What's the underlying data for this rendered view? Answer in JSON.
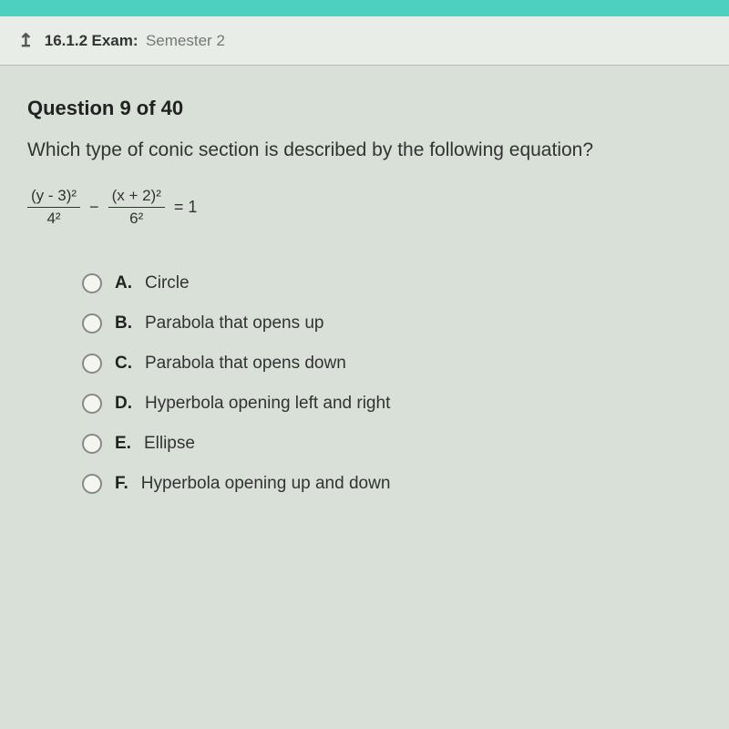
{
  "topbar_color": "#4dd0c0",
  "header": {
    "exam_number": "16.1.2",
    "exam_label": "Exam:",
    "exam_name": "Semester 2"
  },
  "question": {
    "number_label": "Question 9 of 40",
    "text": "Which type of conic section is described by the following equation?",
    "equation": {
      "frac1_num": "(y - 3)²",
      "frac1_den": "4²",
      "minus": "−",
      "frac2_num": "(x + 2)²",
      "frac2_den": "6²",
      "equals": "= 1"
    }
  },
  "options": [
    {
      "letter": "A.",
      "text": "Circle"
    },
    {
      "letter": "B.",
      "text": "Parabola that opens up"
    },
    {
      "letter": "C.",
      "text": "Parabola that opens down"
    },
    {
      "letter": "D.",
      "text": "Hyperbola opening left and right"
    },
    {
      "letter": "E.",
      "text": "Ellipse"
    },
    {
      "letter": "F.",
      "text": "Hyperbola opening up and down"
    }
  ],
  "style": {
    "body_bg": "#d8e0d8",
    "header_bg": "#e8ede8",
    "text_color": "#333",
    "radio_border": "#888"
  }
}
